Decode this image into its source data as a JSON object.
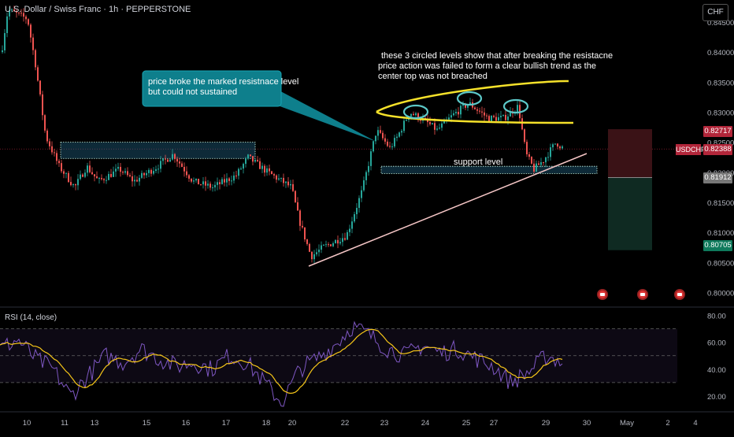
{
  "header": {
    "title": "U.S. Dollar / Swiss Franc · 1h · PEPPERSTONE",
    "currency": "CHF",
    "rsi_title": "RSI (14, close)"
  },
  "price_axis": {
    "ticks": [
      "0.84500",
      "0.84000",
      "0.83500",
      "0.83000",
      "0.82500",
      "0.82000",
      "0.81500",
      "0.81000",
      "0.80500",
      "0.80000"
    ],
    "tags": {
      "upper_target": "0.82717",
      "symbol": "USDCHF",
      "current": "0.82388",
      "mid": "0.81912",
      "lower_target": "0.80705"
    }
  },
  "rsi_axis": {
    "ticks": [
      "80.00",
      "60.00",
      "40.00",
      "20.00"
    ]
  },
  "time_axis": {
    "ticks": [
      "10",
      "11",
      "13",
      "15",
      "16",
      "17",
      "18",
      "20",
      "22",
      "23",
      "24",
      "25",
      "27",
      "29",
      "30",
      "May",
      "2",
      "4"
    ]
  },
  "annotations": {
    "callout": "price broke the marked resistnace level but could not sustained",
    "note": "these 3 circled levels show that after breaking the resistacne price action was failed to form a clear bullish trend as the center top was not breached",
    "support": "support level"
  },
  "colors": {
    "background": "#000000",
    "up_candle": "#26a69a",
    "down_candle": "#ef5350",
    "rsi_line": "#7e57c2",
    "rsi_ma": "#f5c518",
    "callout_fill": "#0e7f8c",
    "ellipse": "#f5e12a",
    "trendline": "#f5c6c6",
    "stop_zone": "#3a1216",
    "target_zone": "#0f2a22"
  },
  "chart_data": [
    {
      "type": "line",
      "title": "U.S. Dollar / Swiss Franc · 1h · PEPPERSTONE",
      "series": [
        {
          "name": "USDCHF",
          "x": [
            "10",
            "11",
            "13",
            "15",
            "16",
            "17",
            "18",
            "20",
            "22",
            "23",
            "24",
            "25",
            "27",
            "29"
          ],
          "values": [
            0.8455,
            0.8205,
            0.8195,
            0.82,
            0.8215,
            0.8205,
            0.821,
            0.8045,
            0.812,
            0.828,
            0.8295,
            0.831,
            0.829,
            0.8239
          ]
        }
      ],
      "ylim": [
        0.7985,
        0.848
      ],
      "levels": {
        "resistance_zone": [
          0.8223,
          0.825
        ],
        "support_zone": [
          0.8198,
          0.821
        ],
        "stop_level": 0.82717,
        "entry_level": 0.81912,
        "target_level": 0.80705
      }
    },
    {
      "type": "line",
      "title": "RSI (14, close)",
      "series": [
        {
          "name": "RSI",
          "values": [
            55,
            62,
            48,
            40,
            20,
            35,
            50,
            45,
            55,
            48,
            42,
            45,
            40,
            50,
            45,
            30,
            15,
            40,
            48,
            58,
            72,
            65,
            55,
            50,
            58,
            52,
            55,
            48,
            42,
            30,
            38,
            50,
            45
          ]
        }
      ],
      "ylim": [
        10,
        85
      ],
      "levels": [
        70,
        50,
        30
      ]
    }
  ]
}
